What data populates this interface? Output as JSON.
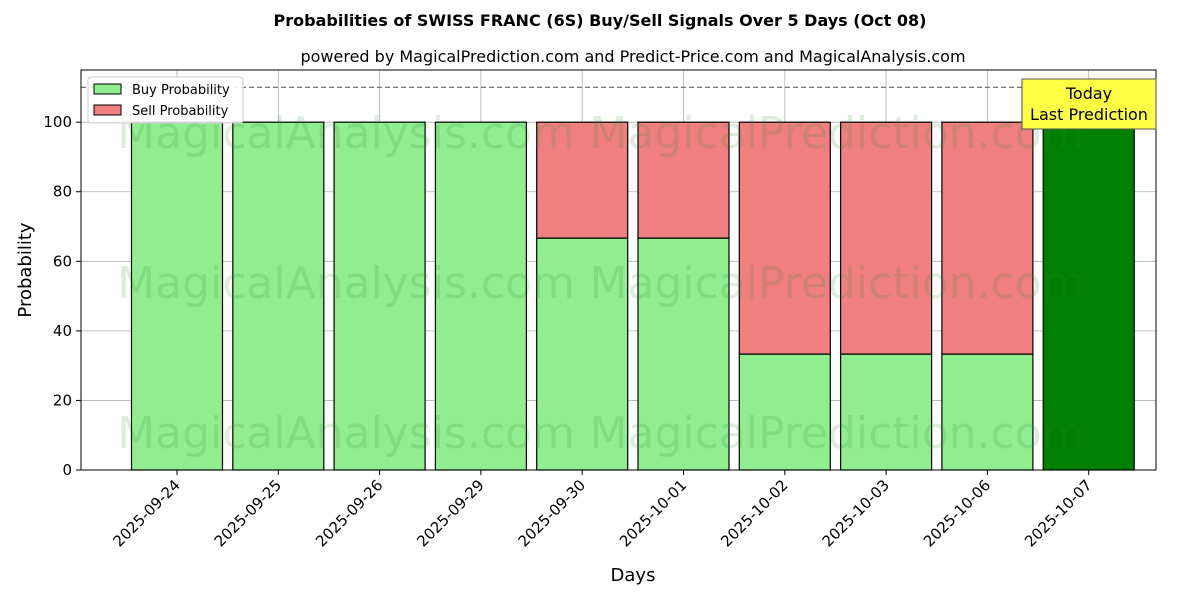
{
  "chart_data": {
    "type": "bar",
    "stacked": true,
    "title": "Probabilities of SWISS FRANC (6S) Buy/Sell Signals Over 5 Days (Oct 08)",
    "subtitle": "powered by MagicalPrediction.com and Predict-Price.com and MagicalAnalysis.com",
    "xlabel": "Days",
    "ylabel": "Probability",
    "ylim": [
      0,
      115
    ],
    "yticks": [
      0,
      20,
      40,
      60,
      80,
      100
    ],
    "grid": true,
    "legend_position": "top-left",
    "reference_line": 110,
    "categories": [
      "2025-09-24",
      "2025-09-25",
      "2025-09-26",
      "2025-09-29",
      "2025-09-30",
      "2025-10-01",
      "2025-10-02",
      "2025-10-03",
      "2025-10-06",
      "2025-10-07"
    ],
    "series": [
      {
        "name": "Buy Probability",
        "color": "#90ee90",
        "values": [
          100,
          100,
          100,
          100,
          66.67,
          66.67,
          33.33,
          33.33,
          33.33,
          100
        ]
      },
      {
        "name": "Sell Probability",
        "color": "#f08080",
        "values": [
          0,
          0,
          0,
          0,
          33.33,
          33.33,
          66.67,
          66.67,
          66.67,
          0
        ]
      }
    ],
    "highlight": {
      "index": 9,
      "color": "#008000"
    },
    "annotation": {
      "lines": [
        "Today",
        "Last Prediction"
      ],
      "color": "#ffff44"
    },
    "watermarks": [
      "MagicalAnalysis.com",
      "MagicalPrediction.com"
    ]
  }
}
